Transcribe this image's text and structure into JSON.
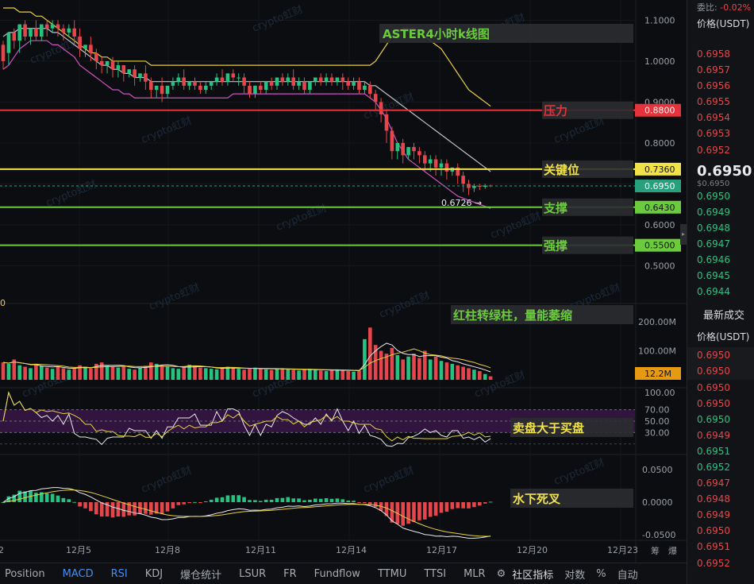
{
  "chart_data": {
    "type": "candlestick",
    "title": "ASTER4小时k线图",
    "symbol_axis": {
      "unit": "USDT"
    },
    "price_axis": {
      "ticks": [
        "1.1000",
        "1.0000",
        "0.9000",
        "0.8000",
        "0.7000",
        "0.6000",
        "0.5000"
      ],
      "ylim": [
        0.46,
        1.13
      ]
    },
    "x_labels": [
      "12月5",
      "12月8",
      "12月11",
      "12月14",
      "12月17",
      "12月20",
      "12月23"
    ],
    "x_label_left_fragment": "2",
    "candles": [
      [
        1.04,
        1.05,
        1.0,
        0.98
      ],
      [
        1.02,
        1.02,
        1.07,
        0.99
      ],
      [
        1.07,
        1.08,
        1.05,
        1.03
      ],
      [
        1.05,
        1.05,
        1.09,
        1.02
      ],
      [
        1.09,
        1.1,
        1.06,
        1.05
      ],
      [
        1.06,
        1.06,
        1.08,
        1.04
      ],
      [
        1.08,
        1.1,
        1.06,
        1.05
      ],
      [
        1.06,
        1.07,
        1.09,
        1.05
      ],
      [
        1.09,
        1.1,
        1.08,
        1.06
      ],
      [
        1.08,
        1.1,
        1.09,
        1.07
      ],
      [
        1.09,
        1.1,
        1.08,
        1.06
      ],
      [
        1.08,
        1.09,
        1.07,
        1.05
      ],
      [
        1.07,
        1.09,
        1.08,
        1.06
      ],
      [
        1.08,
        1.1,
        1.06,
        1.04
      ],
      [
        1.06,
        1.08,
        1.03,
        1.01
      ],
      [
        1.03,
        1.04,
        1.04,
        1.01
      ],
      [
        1.04,
        1.06,
        1.02,
        1.0
      ],
      [
        1.02,
        1.03,
        1.0,
        0.98
      ],
      [
        1.0,
        1.01,
        0.99,
        0.97
      ],
      [
        0.99,
        1.0,
        1.0,
        0.97
      ],
      [
        1.0,
        1.01,
        0.98,
        0.96
      ],
      [
        0.98,
        1.0,
        0.99,
        0.96
      ],
      [
        0.99,
        0.99,
        0.97,
        0.95
      ],
      [
        0.97,
        0.98,
        0.98,
        0.96
      ],
      [
        0.98,
        0.99,
        0.96,
        0.94
      ],
      [
        0.96,
        0.97,
        0.97,
        0.95
      ],
      [
        0.97,
        0.99,
        0.95,
        0.93
      ],
      [
        0.95,
        0.96,
        0.93,
        0.91
      ],
      [
        0.93,
        0.94,
        0.94,
        0.91
      ],
      [
        0.94,
        0.96,
        0.92,
        0.9
      ],
      [
        0.92,
        0.93,
        0.94,
        0.91
      ],
      [
        0.94,
        0.96,
        0.95,
        0.93
      ],
      [
        0.95,
        0.97,
        0.96,
        0.94
      ],
      [
        0.96,
        0.98,
        0.94,
        0.93
      ],
      [
        0.94,
        0.95,
        0.95,
        0.93
      ],
      [
        0.95,
        0.96,
        0.94,
        0.93
      ],
      [
        0.94,
        0.95,
        0.93,
        0.92
      ],
      [
        0.93,
        0.95,
        0.94,
        0.92
      ],
      [
        0.94,
        0.95,
        0.95,
        0.93
      ],
      [
        0.95,
        0.97,
        0.96,
        0.94
      ],
      [
        0.96,
        0.98,
        0.95,
        0.94
      ],
      [
        0.95,
        0.97,
        0.97,
        0.94
      ],
      [
        0.97,
        0.98,
        0.96,
        0.95
      ],
      [
        0.96,
        0.97,
        0.96,
        0.94
      ],
      [
        0.96,
        0.97,
        0.94,
        0.92
      ],
      [
        0.94,
        0.95,
        0.92,
        0.91
      ],
      [
        0.92,
        0.94,
        0.94,
        0.91
      ],
      [
        0.94,
        0.95,
        0.93,
        0.92
      ],
      [
        0.93,
        0.95,
        0.95,
        0.92
      ],
      [
        0.95,
        0.96,
        0.94,
        0.93
      ],
      [
        0.94,
        0.96,
        0.96,
        0.93
      ],
      [
        0.96,
        0.97,
        0.95,
        0.94
      ],
      [
        0.95,
        0.97,
        0.96,
        0.94
      ],
      [
        0.96,
        0.98,
        0.94,
        0.93
      ],
      [
        0.94,
        0.96,
        0.95,
        0.93
      ],
      [
        0.95,
        0.96,
        0.93,
        0.92
      ],
      [
        0.93,
        0.95,
        0.95,
        0.92
      ],
      [
        0.95,
        0.96,
        0.96,
        0.94
      ],
      [
        0.96,
        0.97,
        0.95,
        0.94
      ],
      [
        0.95,
        0.97,
        0.96,
        0.94
      ],
      [
        0.96,
        0.97,
        0.95,
        0.94
      ],
      [
        0.95,
        0.96,
        0.96,
        0.94
      ],
      [
        0.96,
        0.97,
        0.95,
        0.93
      ],
      [
        0.95,
        0.96,
        0.94,
        0.93
      ],
      [
        0.94,
        0.96,
        0.95,
        0.93
      ],
      [
        0.95,
        0.96,
        0.93,
        0.92
      ],
      [
        0.93,
        0.95,
        0.94,
        0.92
      ],
      [
        0.94,
        0.95,
        0.92,
        0.91
      ],
      [
        0.92,
        0.93,
        0.9,
        0.88
      ],
      [
        0.9,
        0.91,
        0.87,
        0.85
      ],
      [
        0.87,
        0.88,
        0.83,
        0.8
      ],
      [
        0.83,
        0.84,
        0.78,
        0.76
      ],
      [
        0.78,
        0.8,
        0.8,
        0.76
      ],
      [
        0.8,
        0.81,
        0.77,
        0.75
      ],
      [
        0.77,
        0.79,
        0.79,
        0.76
      ],
      [
        0.79,
        0.8,
        0.78,
        0.76
      ],
      [
        0.78,
        0.79,
        0.77,
        0.75
      ],
      [
        0.77,
        0.78,
        0.75,
        0.73
      ],
      [
        0.75,
        0.77,
        0.76,
        0.73
      ],
      [
        0.76,
        0.77,
        0.74,
        0.72
      ],
      [
        0.74,
        0.76,
        0.75,
        0.72
      ],
      [
        0.75,
        0.76,
        0.73,
        0.71
      ],
      [
        0.73,
        0.74,
        0.74,
        0.72
      ],
      [
        0.74,
        0.75,
        0.72,
        0.7
      ],
      [
        0.72,
        0.73,
        0.7,
        0.68
      ],
      [
        0.7,
        0.71,
        0.69,
        0.673
      ],
      [
        0.69,
        0.7,
        0.695,
        0.68
      ],
      [
        0.695,
        0.7,
        0.693,
        0.685
      ],
      [
        0.693,
        0.7,
        0.696,
        0.688
      ],
      [
        0.696,
        0.698,
        0.695,
        0.692
      ]
    ],
    "bands": {
      "upper": [
        1.13,
        1.13,
        1.13,
        1.12,
        1.12,
        1.12,
        1.11,
        1.11,
        1.1,
        1.09,
        1.08,
        1.07,
        1.06,
        1.05,
        1.04,
        1.03,
        1.02,
        1.02,
        1.01,
        1.01,
        1.0,
        1.0,
        1.0,
        1.0,
        1.0,
        1.0,
        1.0,
        0.99,
        0.99,
        0.99,
        0.99,
        0.99,
        0.99,
        0.99,
        0.99,
        0.99,
        0.99,
        0.99,
        0.99,
        0.99,
        0.99,
        0.99,
        0.99,
        0.99,
        0.99,
        0.99,
        0.99,
        0.99,
        0.99,
        0.99,
        0.99,
        0.99,
        0.99,
        0.99,
        0.99,
        0.99,
        0.99,
        0.99,
        0.99,
        0.99,
        0.99,
        0.99,
        0.99,
        0.99,
        0.99,
        0.99,
        0.99,
        0.99,
        1.0,
        1.02,
        1.04,
        1.06,
        1.07,
        1.08,
        1.08,
        1.08,
        1.07,
        1.06,
        1.05,
        1.04,
        1.03,
        1.01,
        0.99,
        0.97,
        0.95,
        0.93,
        0.92,
        0.91,
        0.9,
        0.89
      ],
      "middle": [
        1.06,
        1.07,
        1.07,
        1.08,
        1.08,
        1.08,
        1.08,
        1.08,
        1.08,
        1.07,
        1.07,
        1.06,
        1.05,
        1.04,
        1.03,
        1.02,
        1.01,
        1.0,
        0.99,
        0.99,
        0.98,
        0.98,
        0.97,
        0.97,
        0.96,
        0.96,
        0.96,
        0.95,
        0.95,
        0.95,
        0.95,
        0.95,
        0.95,
        0.95,
        0.95,
        0.95,
        0.95,
        0.95,
        0.95,
        0.95,
        0.95,
        0.95,
        0.95,
        0.95,
        0.95,
        0.95,
        0.95,
        0.95,
        0.95,
        0.95,
        0.95,
        0.95,
        0.95,
        0.95,
        0.95,
        0.95,
        0.95,
        0.95,
        0.95,
        0.95,
        0.95,
        0.95,
        0.95,
        0.95,
        0.95,
        0.95,
        0.95,
        0.94,
        0.94,
        0.93,
        0.92,
        0.91,
        0.9,
        0.89,
        0.88,
        0.87,
        0.86,
        0.85,
        0.84,
        0.83,
        0.82,
        0.81,
        0.8,
        0.79,
        0.78,
        0.77,
        0.76,
        0.75,
        0.74,
        0.73
      ],
      "lower": [
        0.98,
        0.99,
        1.01,
        1.03,
        1.04,
        1.05,
        1.05,
        1.05,
        1.05,
        1.04,
        1.04,
        1.03,
        1.02,
        1.01,
        0.99,
        0.98,
        0.97,
        0.96,
        0.95,
        0.94,
        0.93,
        0.93,
        0.92,
        0.92,
        0.91,
        0.91,
        0.91,
        0.91,
        0.91,
        0.91,
        0.91,
        0.91,
        0.91,
        0.91,
        0.91,
        0.91,
        0.91,
        0.91,
        0.91,
        0.91,
        0.91,
        0.91,
        0.92,
        0.92,
        0.92,
        0.92,
        0.92,
        0.92,
        0.92,
        0.92,
        0.92,
        0.92,
        0.92,
        0.92,
        0.92,
        0.92,
        0.92,
        0.92,
        0.92,
        0.92,
        0.92,
        0.92,
        0.92,
        0.92,
        0.92,
        0.92,
        0.92,
        0.91,
        0.9,
        0.88,
        0.86,
        0.83,
        0.8,
        0.78,
        0.76,
        0.75,
        0.74,
        0.73,
        0.72,
        0.71,
        0.7,
        0.69,
        0.68,
        0.67,
        0.665,
        0.66,
        0.655,
        0.65,
        0.645,
        0.64
      ]
    },
    "h_lines": [
      {
        "name": "压力",
        "value": 0.88,
        "label": "0.8800",
        "color": "#e5323b"
      },
      {
        "name": "关键位",
        "value": 0.736,
        "label": "0.7360",
        "color": "#f2e24a"
      },
      {
        "name": "current",
        "value": 0.695,
        "label": "0.6950",
        "color": "#26a17b"
      },
      {
        "name": "支撑",
        "value": 0.643,
        "label": "0.6430",
        "color": "#6ccb3c"
      },
      {
        "name": "强撑",
        "value": 0.55,
        "label": "0.5500",
        "color": "#6ccb3c"
      }
    ],
    "low_marker": "0.6726",
    "volume": {
      "ticks": [
        "200.00M",
        "100.00M"
      ],
      "current_label": "12.2M",
      "left_fragment": "0",
      "values": [
        60,
        55,
        70,
        50,
        45,
        40,
        55,
        48,
        42,
        38,
        45,
        40,
        35,
        38,
        50,
        45,
        40,
        55,
        60,
        48,
        45,
        42,
        50,
        38,
        35,
        42,
        48,
        60,
        55,
        50,
        45,
        40,
        38,
        45,
        52,
        48,
        42,
        40,
        38,
        36,
        42,
        45,
        40,
        38,
        35,
        40,
        42,
        38,
        36,
        34,
        38,
        40,
        36,
        34,
        32,
        36,
        38,
        34,
        32,
        30,
        34,
        36,
        32,
        30,
        28,
        32,
        140,
        180,
        120,
        100,
        90,
        110,
        85,
        70,
        80,
        90,
        75,
        100,
        70,
        80,
        65,
        60,
        55,
        50,
        45,
        40,
        35,
        30,
        20,
        12
      ]
    },
    "rsi": {
      "ticks": [
        "100.00",
        "70.00",
        "50.00",
        "30.00"
      ]
    },
    "macd": {
      "ticks": [
        "0.0500",
        "0.0000",
        "-0.0500"
      ]
    },
    "annotations": {
      "volume_note": "红柱转绿柱，量能萎缩",
      "rsi_note": "卖盘大于买盘",
      "macd_note": "水下死叉"
    },
    "watermark": "crypto虹财",
    "period_buttons": [
      "筹",
      "爆"
    ]
  },
  "sidebar": {
    "top_label": "委比:",
    "top_value": "-0.02%",
    "price_header": "价格(USDT)",
    "asks": [
      "0.6958",
      "0.6957",
      "0.6956",
      "0.6955",
      "0.6954",
      "0.6953",
      "0.6952"
    ],
    "last_price": "0.6950",
    "last_price_sub": "$0.6950",
    "bids": [
      "0.6950",
      "0.6949",
      "0.6948",
      "0.6947",
      "0.6946",
      "0.6945",
      "0.6944"
    ],
    "trades_title": "最新成交",
    "trades_header": "价格(USDT)",
    "trades": [
      {
        "p": "0.6950",
        "c": "#e5464b"
      },
      {
        "p": "0.6950",
        "c": "#e5464b"
      },
      {
        "p": "0.6950",
        "c": "#e5464b"
      },
      {
        "p": "0.6950",
        "c": "#e5464b"
      },
      {
        "p": "0.6950",
        "c": "#26c281"
      },
      {
        "p": "0.6949",
        "c": "#e5464b"
      },
      {
        "p": "0.6951",
        "c": "#26c281"
      },
      {
        "p": "0.6952",
        "c": "#26c281"
      },
      {
        "p": "0.6947",
        "c": "#e5464b"
      },
      {
        "p": "0.6948",
        "c": "#e5464b"
      },
      {
        "p": "0.6949",
        "c": "#e5464b"
      },
      {
        "p": "0.6950",
        "c": "#e5464b"
      },
      {
        "p": "0.6951",
        "c": "#e5464b"
      },
      {
        "p": "0.6952",
        "c": "#e5464b"
      }
    ]
  },
  "bottom_bar": {
    "items": [
      "Position",
      "MACD",
      "RSI",
      "KDJ",
      "爆仓统计",
      "LSUR",
      "FR",
      "Fundflow",
      "TTMU",
      "TTSI",
      "MLR"
    ],
    "active": [
      "MACD",
      "RSI"
    ],
    "right_items": [
      "社区指标",
      "对数",
      "%",
      "自动"
    ]
  },
  "colors": {
    "up": "#26c281",
    "down": "#e5464b",
    "accent": "#3d8ef7"
  }
}
